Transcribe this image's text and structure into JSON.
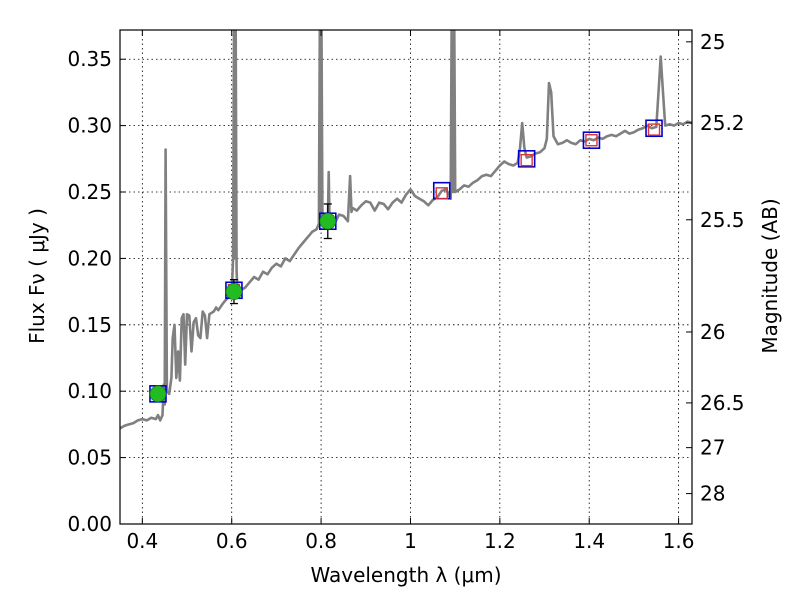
{
  "chart_data": {
    "type": "line",
    "xlabel": "Wavelength  λ (μm)",
    "ylabel": "Flux  Fν  ( μJy )",
    "y2label": "Magnitude (AB)",
    "xlim": [
      0.35,
      1.63
    ],
    "ylim": [
      0.0,
      0.372
    ],
    "x_ticks": [
      0.4,
      0.6,
      0.8,
      1.0,
      1.2,
      1.4,
      1.6
    ],
    "x_tick_labels": [
      "0.4",
      "0.6",
      "0.8",
      "1",
      "1.2",
      "1.4",
      "1.6"
    ],
    "y_ticks": [
      0.0,
      0.05,
      0.1,
      0.15,
      0.2,
      0.25,
      0.3,
      0.35
    ],
    "y_tick_labels": [
      "0.00",
      "0.05",
      "0.10",
      "0.15",
      "0.20",
      "0.25",
      "0.30",
      "0.35"
    ],
    "y2_ticks": [
      {
        "label": "25",
        "flux": 0.3631
      },
      {
        "label": "25.2",
        "flux": 0.302
      },
      {
        "label": "25.5",
        "flux": 0.2291
      },
      {
        "label": "26",
        "flux": 0.1446
      },
      {
        "label": "26.5",
        "flux": 0.0912
      },
      {
        "label": "27",
        "flux": 0.0575
      },
      {
        "label": "28",
        "flux": 0.0229
      }
    ],
    "grid": true,
    "series": [
      {
        "name": "model spectrum",
        "kind": "line",
        "color": "#808080",
        "points": [
          [
            0.35,
            0.072
          ],
          [
            0.36,
            0.074
          ],
          [
            0.37,
            0.075
          ],
          [
            0.38,
            0.076
          ],
          [
            0.39,
            0.078
          ],
          [
            0.4,
            0.079
          ],
          [
            0.41,
            0.078
          ],
          [
            0.42,
            0.08
          ],
          [
            0.43,
            0.079
          ],
          [
            0.435,
            0.082
          ],
          [
            0.44,
            0.078
          ],
          [
            0.445,
            0.082
          ],
          [
            0.448,
            0.105
          ],
          [
            0.45,
            0.09
          ],
          [
            0.452,
            0.282
          ],
          [
            0.455,
            0.1
          ],
          [
            0.46,
            0.098
          ],
          [
            0.465,
            0.11
          ],
          [
            0.468,
            0.14
          ],
          [
            0.472,
            0.15
          ],
          [
            0.476,
            0.11
          ],
          [
            0.48,
            0.13
          ],
          [
            0.484,
            0.108
          ],
          [
            0.488,
            0.155
          ],
          [
            0.492,
            0.158
          ],
          [
            0.496,
            0.12
          ],
          [
            0.5,
            0.158
          ],
          [
            0.505,
            0.157
          ],
          [
            0.51,
            0.13
          ],
          [
            0.515,
            0.152
          ],
          [
            0.52,
            0.155
          ],
          [
            0.525,
            0.142
          ],
          [
            0.53,
            0.14
          ],
          [
            0.535,
            0.16
          ],
          [
            0.54,
            0.157
          ],
          [
            0.545,
            0.14
          ],
          [
            0.55,
            0.158
          ],
          [
            0.56,
            0.16
          ],
          [
            0.565,
            0.163
          ],
          [
            0.57,
            0.161
          ],
          [
            0.58,
            0.166
          ],
          [
            0.59,
            0.17
          ],
          [
            0.6,
            0.173
          ],
          [
            0.603,
            0.2
          ],
          [
            0.605,
            0.372
          ],
          [
            0.607,
            0.2
          ],
          [
            0.609,
            0.372
          ],
          [
            0.611,
            0.19
          ],
          [
            0.613,
            0.175
          ],
          [
            0.62,
            0.176
          ],
          [
            0.63,
            0.178
          ],
          [
            0.64,
            0.182
          ],
          [
            0.65,
            0.186
          ],
          [
            0.66,
            0.184
          ],
          [
            0.67,
            0.19
          ],
          [
            0.68,
            0.188
          ],
          [
            0.69,
            0.193
          ],
          [
            0.7,
            0.196
          ],
          [
            0.71,
            0.194
          ],
          [
            0.72,
            0.2
          ],
          [
            0.73,
            0.198
          ],
          [
            0.74,
            0.203
          ],
          [
            0.75,
            0.208
          ],
          [
            0.76,
            0.212
          ],
          [
            0.77,
            0.216
          ],
          [
            0.78,
            0.22
          ],
          [
            0.79,
            0.222
          ],
          [
            0.795,
            0.226
          ],
          [
            0.797,
            0.372
          ],
          [
            0.799,
            0.23
          ],
          [
            0.801,
            0.372
          ],
          [
            0.803,
            0.232
          ],
          [
            0.81,
            0.23
          ],
          [
            0.815,
            0.225
          ],
          [
            0.817,
            0.265
          ],
          [
            0.819,
            0.226
          ],
          [
            0.825,
            0.228
          ],
          [
            0.83,
            0.226
          ],
          [
            0.84,
            0.233
          ],
          [
            0.85,
            0.232
          ],
          [
            0.86,
            0.228
          ],
          [
            0.865,
            0.262
          ],
          [
            0.868,
            0.235
          ],
          [
            0.87,
            0.238
          ],
          [
            0.88,
            0.236
          ],
          [
            0.89,
            0.24
          ],
          [
            0.9,
            0.243
          ],
          [
            0.91,
            0.242
          ],
          [
            0.92,
            0.236
          ],
          [
            0.93,
            0.242
          ],
          [
            0.94,
            0.241
          ],
          [
            0.95,
            0.237
          ],
          [
            0.96,
            0.242
          ],
          [
            0.97,
            0.245
          ],
          [
            0.98,
            0.242
          ],
          [
            0.99,
            0.248
          ],
          [
            1.0,
            0.252
          ],
          [
            1.01,
            0.247
          ],
          [
            1.02,
            0.245
          ],
          [
            1.03,
            0.243
          ],
          [
            1.04,
            0.24
          ],
          [
            1.05,
            0.244
          ],
          [
            1.06,
            0.246
          ],
          [
            1.07,
            0.251
          ],
          [
            1.08,
            0.252
          ],
          [
            1.085,
            0.248
          ],
          [
            1.09,
            0.245
          ],
          [
            1.092,
            0.372
          ],
          [
            1.095,
            0.25
          ],
          [
            1.098,
            0.372
          ],
          [
            1.1,
            0.25
          ],
          [
            1.11,
            0.252
          ],
          [
            1.12,
            0.255
          ],
          [
            1.13,
            0.254
          ],
          [
            1.14,
            0.257
          ],
          [
            1.15,
            0.259
          ],
          [
            1.16,
            0.262
          ],
          [
            1.17,
            0.263
          ],
          [
            1.18,
            0.262
          ],
          [
            1.19,
            0.266
          ],
          [
            1.2,
            0.27
          ],
          [
            1.21,
            0.273
          ],
          [
            1.22,
            0.271
          ],
          [
            1.23,
            0.27
          ],
          [
            1.24,
            0.272
          ],
          [
            1.245,
            0.283
          ],
          [
            1.25,
            0.302
          ],
          [
            1.255,
            0.283
          ],
          [
            1.26,
            0.276
          ],
          [
            1.27,
            0.277
          ],
          [
            1.28,
            0.279
          ],
          [
            1.29,
            0.28
          ],
          [
            1.3,
            0.283
          ],
          [
            1.305,
            0.29
          ],
          [
            1.31,
            0.332
          ],
          [
            1.315,
            0.325
          ],
          [
            1.32,
            0.292
          ],
          [
            1.33,
            0.286
          ],
          [
            1.34,
            0.287
          ],
          [
            1.35,
            0.289
          ],
          [
            1.36,
            0.287
          ],
          [
            1.37,
            0.286
          ],
          [
            1.38,
            0.289
          ],
          [
            1.39,
            0.288
          ],
          [
            1.4,
            0.29
          ],
          [
            1.41,
            0.289
          ],
          [
            1.42,
            0.291
          ],
          [
            1.43,
            0.29
          ],
          [
            1.44,
            0.292
          ],
          [
            1.45,
            0.293
          ],
          [
            1.46,
            0.292
          ],
          [
            1.47,
            0.294
          ],
          [
            1.48,
            0.296
          ],
          [
            1.49,
            0.294
          ],
          [
            1.5,
            0.295
          ],
          [
            1.51,
            0.297
          ],
          [
            1.52,
            0.298
          ],
          [
            1.53,
            0.3
          ],
          [
            1.54,
            0.298
          ],
          [
            1.55,
            0.299
          ],
          [
            1.555,
            0.325
          ],
          [
            1.56,
            0.352
          ],
          [
            1.565,
            0.325
          ],
          [
            1.57,
            0.3
          ],
          [
            1.58,
            0.301
          ],
          [
            1.59,
            0.3
          ],
          [
            1.6,
            0.302
          ],
          [
            1.61,
            0.301
          ],
          [
            1.62,
            0.303
          ],
          [
            1.63,
            0.302
          ]
        ]
      },
      {
        "name": "blue open squares",
        "kind": "marker",
        "marker": "square-open",
        "color": "#0000cc",
        "points": [
          [
            0.435,
            0.098
          ],
          [
            0.605,
            0.176
          ],
          [
            0.815,
            0.228
          ],
          [
            1.07,
            0.251
          ],
          [
            1.26,
            0.275
          ],
          [
            1.405,
            0.289
          ],
          [
            1.545,
            0.298
          ]
        ]
      },
      {
        "name": "red open squares",
        "kind": "marker",
        "marker": "square-open-small",
        "color": "#dd3333",
        "points": [
          [
            0.435,
            0.098
          ],
          [
            0.605,
            0.176
          ],
          [
            0.815,
            0.228
          ],
          [
            1.07,
            0.249
          ],
          [
            1.26,
            0.274
          ],
          [
            1.405,
            0.289
          ],
          [
            1.545,
            0.297
          ]
        ]
      },
      {
        "name": "green observed points",
        "kind": "marker",
        "marker": "circle-filled",
        "color": "#22bb22",
        "points": [
          [
            0.435,
            0.098
          ],
          [
            0.605,
            0.175
          ],
          [
            0.815,
            0.228
          ]
        ],
        "errors": [
          0.003,
          0.009,
          0.013
        ]
      }
    ]
  }
}
